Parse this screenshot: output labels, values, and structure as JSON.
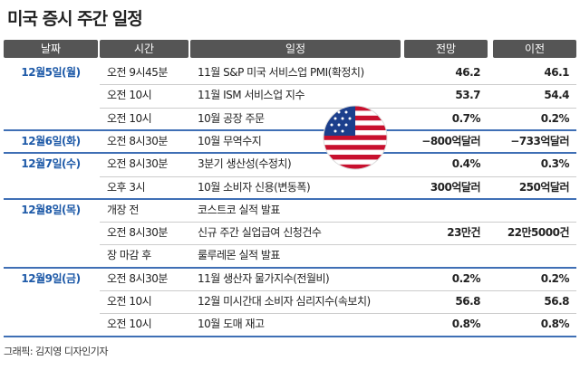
{
  "header": {
    "title": "미국 증시 주간 일정"
  },
  "table": {
    "columns": [
      "날짜",
      "시간",
      "일정",
      "전망",
      "이전"
    ],
    "groups": [
      {
        "date": "12월5일(월)",
        "rows": [
          {
            "time": "오전 9시45분",
            "event": "11월 S&P 미국 서비스업 PMI(확정치)",
            "forecast": "46.2",
            "previous": "46.1"
          },
          {
            "time": "오전 10시",
            "event": "11월 ISM 서비스업 지수",
            "forecast": "53.7",
            "previous": "54.4"
          },
          {
            "time": "오전 10시",
            "event": "10월 공장 주문",
            "forecast": "0.7%",
            "previous": "0.2%"
          }
        ]
      },
      {
        "date": "12월6일(화)",
        "rows": [
          {
            "time": "오전 8시30분",
            "event": "10월 무역수지",
            "forecast": "−800억달러",
            "previous": "−733억달러"
          }
        ]
      },
      {
        "date": "12월7일(수)",
        "rows": [
          {
            "time": "오전 8시30분",
            "event": "3분기 생산성(수정치)",
            "forecast": "0.4%",
            "previous": "0.3%"
          },
          {
            "time": "오후 3시",
            "event": "10월 소비자 신용(변동폭)",
            "forecast": "300억달러",
            "previous": "250억달러"
          }
        ]
      },
      {
        "date": "12월8일(목)",
        "rows": [
          {
            "time": "개장 전",
            "event": "코스트코 실적 발표"
          },
          {
            "time": "오전 8시30분",
            "event": "신규 주간 실업급여 신청건수",
            "forecast": "23만건",
            "previous": "22만5000건"
          },
          {
            "time": "장 마감 후",
            "event": "룰루레몬 실적 발표"
          }
        ]
      },
      {
        "date": "12월9일(금)",
        "rows": [
          {
            "time": "오전 8시30분",
            "event": "11월 생산자 물가지수(전월비)",
            "forecast": "0.2%",
            "previous": "0.2%"
          },
          {
            "time": "오전 10시",
            "event": "12월 미시간대 소비자 심리지수(속보치)",
            "forecast": "56.8",
            "previous": "56.8"
          },
          {
            "time": "오전 10시",
            "event": "10월 도매 재고",
            "forecast": "0.8%",
            "previous": "0.8%"
          }
        ]
      }
    ]
  },
  "footer": {
    "credit": "그래픽: 김지영 디자인기자"
  }
}
